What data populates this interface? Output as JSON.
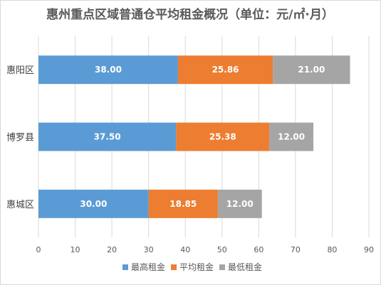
{
  "chart_data": {
    "type": "bar",
    "orientation": "horizontal",
    "stacked": true,
    "title": "惠州重点区域普通仓平均租金概况（单位：元/㎡·月）",
    "categories": [
      "惠阳区",
      "博罗县",
      "惠城区"
    ],
    "series": [
      {
        "name": "最高租金",
        "color": "#5b9bd5",
        "values": [
          38.0,
          37.5,
          30.0
        ],
        "labels": [
          "38.00",
          "37.50",
          "30.00"
        ]
      },
      {
        "name": "平均租金",
        "color": "#ed7d31",
        "values": [
          25.86,
          25.38,
          18.85
        ],
        "labels": [
          "25.86",
          "25.38",
          "18.85"
        ]
      },
      {
        "name": "最低租金",
        "color": "#a5a5a5",
        "values": [
          21.0,
          12.0,
          12.0
        ],
        "labels": [
          "21.00",
          "12.00",
          "12.00"
        ]
      }
    ],
    "xlim": [
      0,
      90
    ],
    "xticks": [
      0,
      10,
      20,
      30,
      40,
      50,
      60,
      70,
      80,
      90
    ],
    "xtick_labels": [
      "0",
      "10",
      "20",
      "30",
      "40",
      "50",
      "60",
      "70",
      "80",
      "90"
    ],
    "grid": "vertical",
    "legend_position": "bottom"
  }
}
